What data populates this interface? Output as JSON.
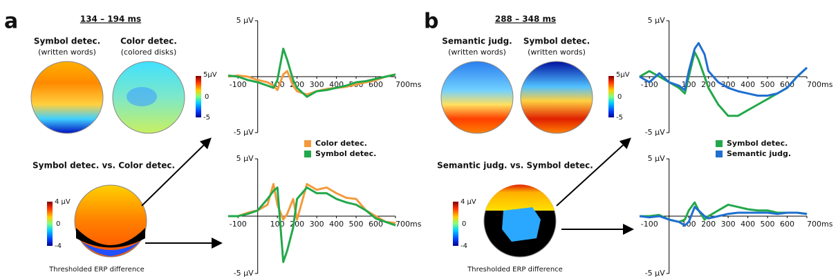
{
  "chart_data": [
    {
      "type": "line",
      "x": [
        -150,
        -100,
        -50,
        0,
        50,
        80,
        100,
        130,
        150,
        180,
        200,
        250,
        300,
        350,
        400,
        450,
        500,
        550,
        600,
        650,
        700
      ],
      "series": [
        {
          "name": "Color detec.",
          "color": "#f39a3c",
          "values": [
            0,
            0.1,
            0,
            -0.3,
            -0.5,
            -0.8,
            -1.2,
            0.2,
            0.5,
            -0.8,
            -1.3,
            -1.6,
            -1.3,
            -1.1,
            -1.0,
            -0.9,
            -0.7,
            -0.5,
            -0.3,
            0,
            0.2
          ]
        },
        {
          "name": "Symbol detec.",
          "color": "#22a84a",
          "values": [
            0.1,
            0,
            -0.3,
            -0.5,
            -0.8,
            -1.0,
            -0.3,
            2.5,
            1.5,
            -0.3,
            -1.0,
            -1.8,
            -1.3,
            -1.2,
            -1.0,
            -0.8,
            -0.5,
            -0.4,
            -0.2,
            0,
            0.2
          ]
        }
      ],
      "xlim": [
        -150,
        700
      ],
      "ylim": [
        -5,
        5
      ],
      "xticks": [
        -100,
        100,
        200,
        300,
        400,
        500,
        600,
        {
          "value": 700,
          "label": "700ms"
        }
      ],
      "yticks": [
        {
          "value": 5,
          "label": "5 µV"
        },
        {
          "value": -5,
          "label": "-5 µV"
        }
      ],
      "legend": "below"
    },
    {
      "type": "line",
      "x": [
        -150,
        -100,
        -50,
        0,
        50,
        80,
        100,
        130,
        150,
        180,
        200,
        250,
        300,
        350,
        400,
        450,
        500,
        550,
        600,
        650,
        700
      ],
      "series": [
        {
          "color": "#f39a3c",
          "values": [
            0,
            0,
            0.3,
            0.5,
            1.0,
            2.8,
            1.0,
            -0.3,
            0.2,
            1.5,
            -0.3,
            2.8,
            2.3,
            2.5,
            2.0,
            1.6,
            1.5,
            0.5,
            0,
            -0.5,
            -0.6
          ]
        },
        {
          "color": "#22a84a",
          "values": [
            0,
            0,
            0.2,
            0.5,
            1.5,
            2.2,
            2.5,
            -4.0,
            -3.0,
            -1.0,
            1.5,
            2.5,
            2.0,
            2.0,
            1.5,
            1.2,
            1.0,
            0.5,
            -0.2,
            -0.5,
            -0.8
          ]
        }
      ],
      "xlim": [
        -150,
        700
      ],
      "ylim": [
        -5,
        5
      ],
      "xticks": [
        -100,
        100,
        200,
        300,
        400,
        500,
        600,
        {
          "value": 700,
          "label": "700ms"
        }
      ],
      "yticks": [
        {
          "value": 5,
          "label": "5 µV"
        },
        {
          "value": -5,
          "label": "-5 µV"
        }
      ]
    },
    {
      "type": "line",
      "x": [
        -150,
        -100,
        -50,
        0,
        50,
        80,
        100,
        130,
        150,
        180,
        200,
        250,
        300,
        350,
        400,
        450,
        500,
        550,
        600,
        650,
        700
      ],
      "series": [
        {
          "name": "Symbol detec.",
          "color": "#22a84a",
          "values": [
            0,
            0.5,
            0,
            -0.5,
            -1,
            -1.5,
            0,
            2.2,
            1.5,
            0,
            -1.0,
            -2.5,
            -3.5,
            -3.5,
            -3.0,
            -2.5,
            -2.0,
            -1.5,
            -1.0,
            0,
            0.8
          ]
        },
        {
          "name": "Semantic judg.",
          "color": "#1f6fd0",
          "values": [
            0,
            -0.5,
            0.3,
            -0.5,
            -0.8,
            -1.2,
            0.5,
            2.5,
            3.0,
            2.0,
            0.5,
            -0.5,
            -1.0,
            -1.3,
            -1.5,
            -1.7,
            -1.7,
            -1.5,
            -1.0,
            0,
            0.8
          ]
        }
      ],
      "xlim": [
        -150,
        700
      ],
      "ylim": [
        -5,
        5
      ],
      "xticks": [
        -100,
        100,
        200,
        300,
        400,
        500,
        600,
        {
          "value": 700,
          "label": "700ms"
        }
      ],
      "yticks": [
        {
          "value": 5,
          "label": "5 µV"
        },
        {
          "value": -5,
          "label": "-5 µV"
        }
      ],
      "legend": "below"
    },
    {
      "type": "line",
      "x": [
        -150,
        -100,
        -50,
        0,
        50,
        80,
        100,
        130,
        150,
        180,
        200,
        250,
        300,
        350,
        400,
        450,
        500,
        550,
        600,
        650,
        700
      ],
      "series": [
        {
          "color": "#22a84a",
          "values": [
            0,
            0,
            0.1,
            -0.3,
            -0.5,
            -0.3,
            0.5,
            1.2,
            0.5,
            -0.3,
            0,
            0.5,
            1.0,
            0.8,
            0.6,
            0.5,
            0.5,
            0.3,
            0.3,
            0.3,
            0.2
          ]
        },
        {
          "color": "#1f6fd0",
          "values": [
            0,
            -0.1,
            0,
            -0.3,
            -0.5,
            -0.8,
            -0.5,
            0.8,
            0.5,
            0,
            -0.2,
            0,
            0.2,
            0.3,
            0.3,
            0.3,
            0.3,
            0.2,
            0.3,
            0.3,
            0.2
          ]
        }
      ],
      "xlim": [
        -150,
        700
      ],
      "ylim": [
        -5,
        5
      ],
      "xticks": [
        -100,
        100,
        200,
        300,
        400,
        500,
        600,
        {
          "value": 700,
          "label": "700ms"
        }
      ],
      "yticks": [
        {
          "value": 5,
          "label": "5 µV"
        },
        {
          "value": -5,
          "label": "-5 µV"
        }
      ]
    }
  ],
  "panels": [
    {
      "letter": "a",
      "window": "134 – 194 ms",
      "maps": [
        {
          "title": "Symbol detec.",
          "subtitle": "(written words)"
        },
        {
          "title": "Color detec.",
          "subtitle": "(colored disks)"
        }
      ],
      "colorbar": [
        "5µV",
        "0",
        "-5"
      ],
      "contrast": "Symbol detec. vs. Color detec.",
      "diff_colorbar": [
        "4 µV",
        "0",
        "-4"
      ],
      "caption": "Thresholded ERP difference"
    },
    {
      "letter": "b",
      "window": "288 – 348 ms",
      "maps": [
        {
          "title": "Semantic judg.",
          "subtitle": "(written words)"
        },
        {
          "title": "Symbol detec.",
          "subtitle": "(written words)"
        }
      ],
      "colorbar": [
        "5µV",
        "0",
        "-5"
      ],
      "contrast": "Semantic judg. vs. Symbol detec.",
      "diff_colorbar": [
        "4 µV",
        "0",
        "-4"
      ],
      "caption": "Thresholded ERP difference"
    }
  ]
}
